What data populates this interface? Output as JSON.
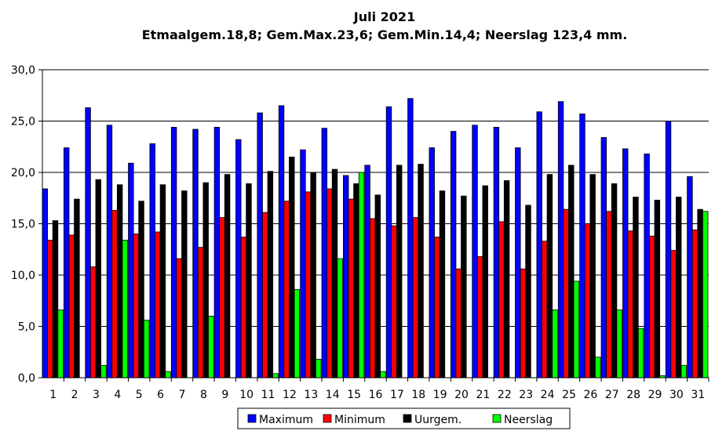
{
  "chart_data": {
    "type": "bar",
    "title": "Juli 2021",
    "subtitle": "Etmaalgem.18,8; Gem.Max.23,6; Gem.Min.14,4; Neerslag 123,4 mm.",
    "xlabel": "",
    "ylabel": "",
    "ylim": [
      0,
      30
    ],
    "y_ticks": [
      "0,0",
      "5,0",
      "10,0",
      "15,0",
      "20,0",
      "25,0",
      "30,0"
    ],
    "categories": [
      "1",
      "2",
      "3",
      "4",
      "5",
      "6",
      "7",
      "8",
      "9",
      "10",
      "11",
      "12",
      "13",
      "14",
      "15",
      "16",
      "17",
      "18",
      "19",
      "20",
      "21",
      "22",
      "23",
      "24",
      "25",
      "26",
      "27",
      "28",
      "29",
      "30",
      "31"
    ],
    "grid": true,
    "legend_position": "bottom",
    "series": [
      {
        "name": "Maximum",
        "color": "#0000ff",
        "values": [
          18.4,
          22.4,
          26.3,
          24.6,
          20.9,
          22.8,
          24.4,
          24.2,
          24.4,
          23.2,
          25.8,
          26.5,
          22.2,
          24.3,
          19.7,
          20.7,
          26.4,
          27.2,
          22.4,
          24.0,
          24.6,
          24.4,
          22.4,
          25.9,
          26.9,
          25.7,
          23.4,
          22.3,
          21.8,
          25.0,
          19.6
        ]
      },
      {
        "name": "Minimum",
        "color": "#ff0000",
        "values": [
          13.4,
          13.9,
          10.8,
          16.3,
          14.0,
          14.2,
          11.6,
          12.7,
          15.6,
          13.7,
          16.1,
          17.2,
          18.1,
          18.4,
          17.4,
          15.5,
          14.8,
          15.6,
          13.7,
          10.6,
          11.8,
          15.2,
          10.6,
          13.3,
          16.4,
          15.0,
          16.2,
          14.3,
          13.8,
          12.4,
          14.4
        ]
      },
      {
        "name": "Uurgem.",
        "color": "#000000",
        "values": [
          15.3,
          17.4,
          19.3,
          18.8,
          17.2,
          18.8,
          18.2,
          19.0,
          19.8,
          18.9,
          20.1,
          21.5,
          20.0,
          20.3,
          18.9,
          17.8,
          20.7,
          20.8,
          18.2,
          17.7,
          18.7,
          19.2,
          16.8,
          19.8,
          20.7,
          19.8,
          18.9,
          17.6,
          17.3,
          17.6,
          16.4
        ]
      },
      {
        "name": "Neerslag",
        "color": "#00ff00",
        "values": [
          6.6,
          0.0,
          1.2,
          13.4,
          5.6,
          0.6,
          0.0,
          6.0,
          0.0,
          0.0,
          0.4,
          8.6,
          1.8,
          11.6,
          20.0,
          0.6,
          0.0,
          0.0,
          0.0,
          0.0,
          0.0,
          0.0,
          0.0,
          6.6,
          9.4,
          2.0,
          6.6,
          4.8,
          0.2,
          1.2,
          16.2
        ]
      }
    ]
  }
}
